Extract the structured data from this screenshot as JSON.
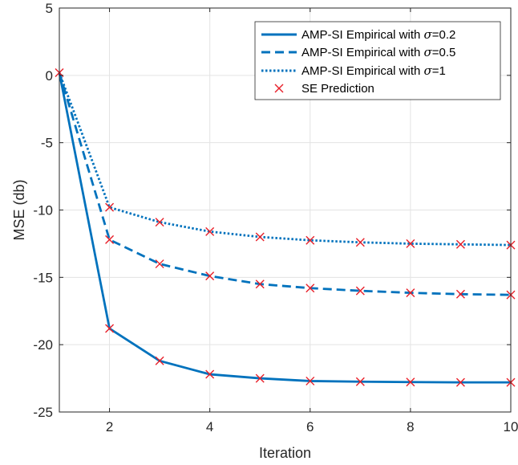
{
  "chart_data": {
    "type": "line",
    "title": "",
    "xlabel": "Iteration",
    "ylabel": "MSE (db)",
    "xlim": [
      1,
      10
    ],
    "ylim": [
      -25,
      5
    ],
    "xticks": [
      2,
      4,
      6,
      8,
      10
    ],
    "yticks": [
      5,
      0,
      -5,
      -10,
      -15,
      -20,
      -25
    ],
    "grid": true,
    "legend_position": "top-right",
    "x": [
      1,
      2,
      3,
      4,
      5,
      6,
      7,
      8,
      9,
      10
    ],
    "series": [
      {
        "name": "AMP-SI Empirical with σ=0.2",
        "legend_prefix": "AMP-SI Empirical with ",
        "legend_sigma": "σ",
        "legend_suffix": "=0.2",
        "style": "solid",
        "color": "#0072BD",
        "values": [
          0.2,
          -18.8,
          -21.2,
          -22.2,
          -22.5,
          -22.7,
          -22.75,
          -22.78,
          -22.8,
          -22.8
        ]
      },
      {
        "name": "AMP-SI Empirical with σ=0.5",
        "legend_prefix": "AMP-SI Empirical with ",
        "legend_sigma": "σ",
        "legend_suffix": "=0.5",
        "style": "dashed",
        "color": "#0072BD",
        "values": [
          0.2,
          -12.2,
          -14.0,
          -14.9,
          -15.5,
          -15.8,
          -16.0,
          -16.15,
          -16.25,
          -16.3
        ]
      },
      {
        "name": "AMP-SI Empirical with σ=1",
        "legend_prefix": "AMP-SI Empirical with ",
        "legend_sigma": "σ",
        "legend_suffix": "=1",
        "style": "dotted",
        "color": "#0072BD",
        "values": [
          0.2,
          -9.8,
          -10.9,
          -11.6,
          -12.0,
          -12.25,
          -12.4,
          -12.5,
          -12.55,
          -12.6
        ]
      }
    ],
    "markers": {
      "name": "SE Prediction",
      "symbol": "x",
      "color": "#E8202A",
      "x": [
        1,
        2,
        3,
        4,
        5,
        6,
        7,
        8,
        9,
        10,
        2,
        3,
        4,
        5,
        6,
        7,
        8,
        9,
        10,
        2,
        3,
        4,
        5,
        6,
        7,
        8,
        9,
        10
      ],
      "y": [
        0.2,
        -18.8,
        -21.2,
        -22.2,
        -22.5,
        -22.7,
        -22.75,
        -22.78,
        -22.8,
        -22.8,
        -12.2,
        -14.0,
        -14.9,
        -15.5,
        -15.8,
        -16.0,
        -16.15,
        -16.25,
        -16.3,
        -9.8,
        -10.9,
        -11.6,
        -12.0,
        -12.25,
        -12.4,
        -12.5,
        -12.55,
        -12.6
      ]
    }
  }
}
